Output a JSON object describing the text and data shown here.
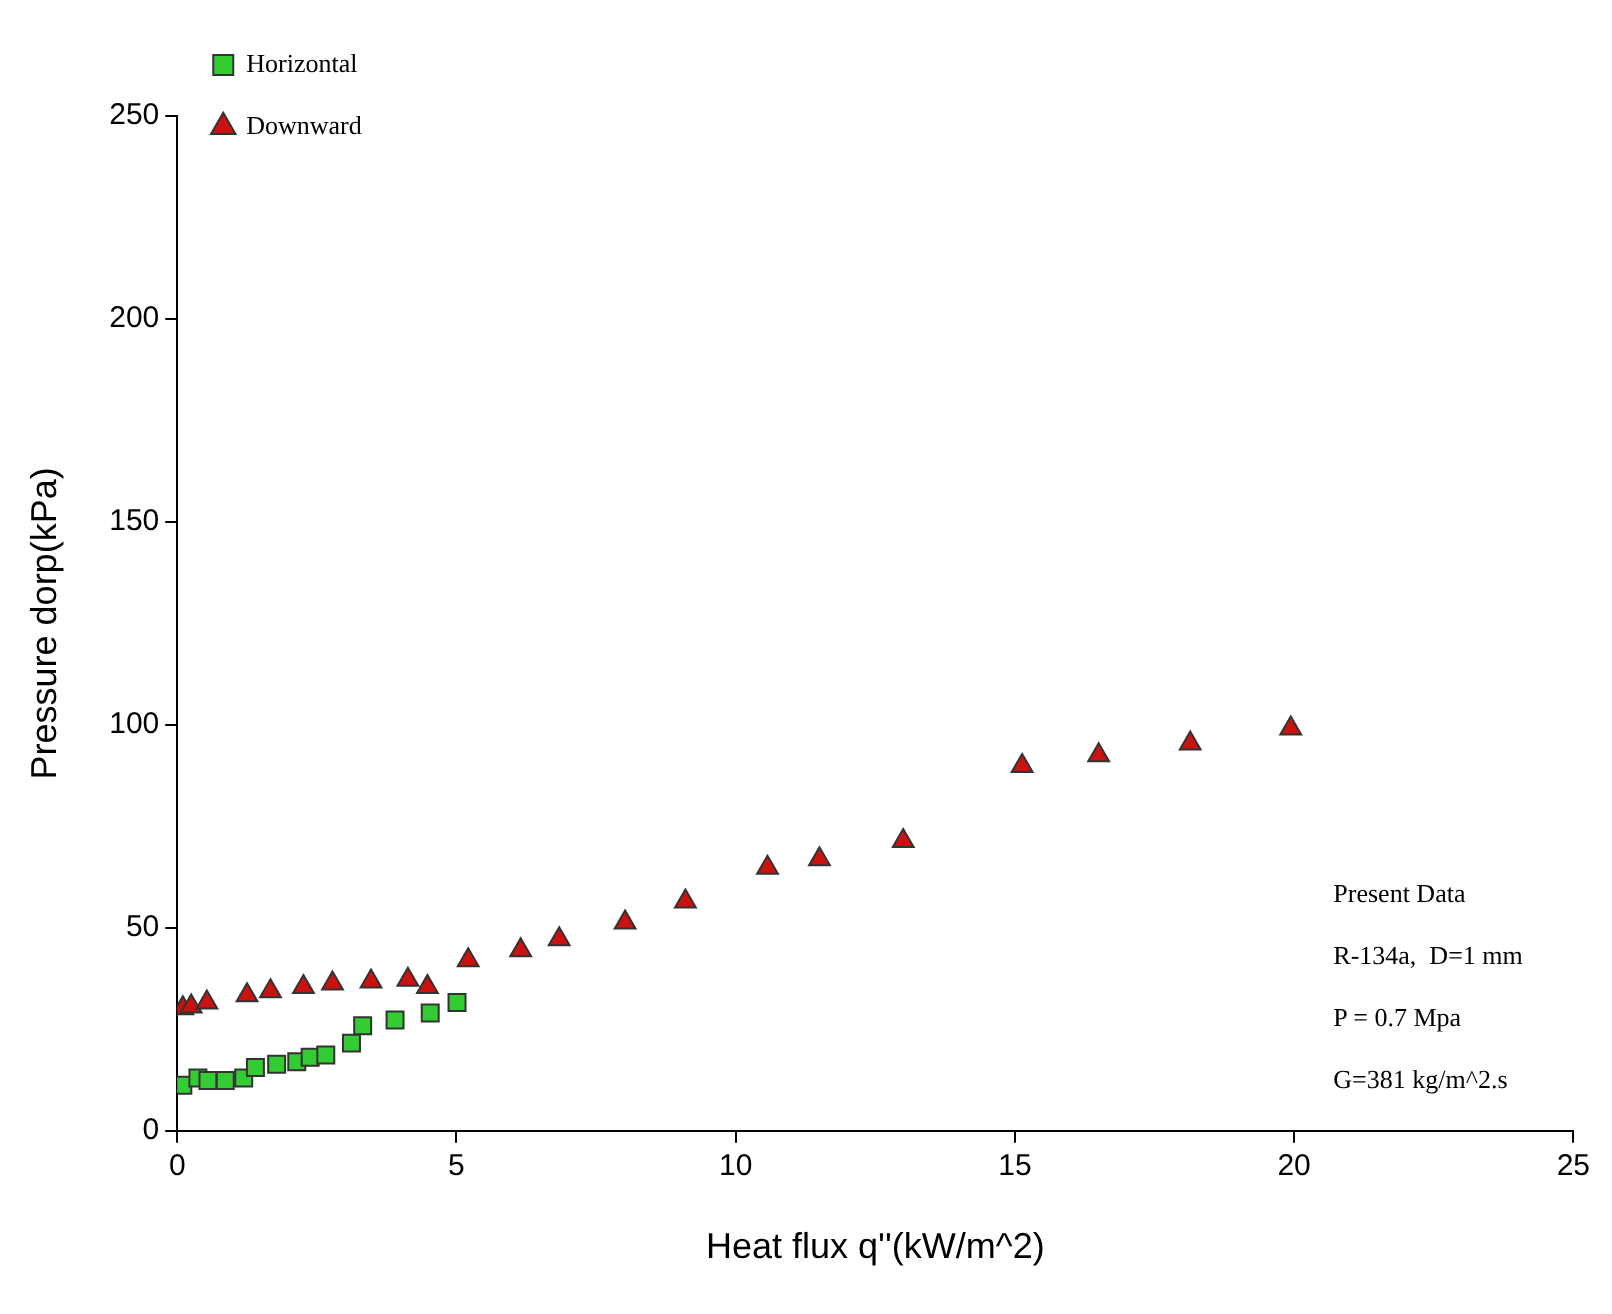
{
  "chart_data": {
    "type": "scatter",
    "xlabel": "Heat flux q''(kW/m^2)",
    "ylabel": "Pressure dorp(kPa)",
    "xlim": [
      0,
      25
    ],
    "xticks": [
      0,
      5,
      10,
      15,
      20,
      25
    ],
    "ylim": [
      0,
      250
    ],
    "yticks": [
      0,
      50,
      100,
      150,
      200,
      250
    ],
    "grid": false,
    "legend": "top left",
    "annotations": [
      "Present Data",
      "R-134a,  D=1 mm",
      "P = 0.7 Mpa",
      "G=381 kg/m^2.s"
    ],
    "series": [
      {
        "name": "Horizontal",
        "color": "#33cc33",
        "marker": "square",
        "x": [
          0.1,
          0.37,
          0.55,
          0.86,
          1.19,
          1.4,
          1.78,
          2.14,
          2.38,
          2.66,
          3.12,
          3.32,
          3.9,
          4.53,
          5.01
        ],
        "values": [
          11.2,
          13,
          12.4,
          12.4,
          13,
          15.6,
          16.4,
          17,
          18.1,
          18.7,
          21.6,
          25.9,
          27.3,
          29,
          31.6
        ]
      },
      {
        "name": "Downward",
        "color": "#cc1111",
        "marker": "triangle",
        "x": [
          0.1,
          0.25,
          0.53,
          1.25,
          1.67,
          2.26,
          2.78,
          3.47,
          4.13,
          4.48,
          5.21,
          6.15,
          6.84,
          8.02,
          9.1,
          10.57,
          11.5,
          13.0,
          15.13,
          16.5,
          18.14,
          19.94
        ],
        "values": [
          30.2,
          30.6,
          31.6,
          33.4,
          34.4,
          35.4,
          36.3,
          36.8,
          37.2,
          35.4,
          42,
          44.5,
          47.2,
          51.3,
          56.5,
          64.8,
          66.9,
          71.4,
          89.9,
          92.5,
          95.4,
          99.1
        ]
      }
    ]
  }
}
